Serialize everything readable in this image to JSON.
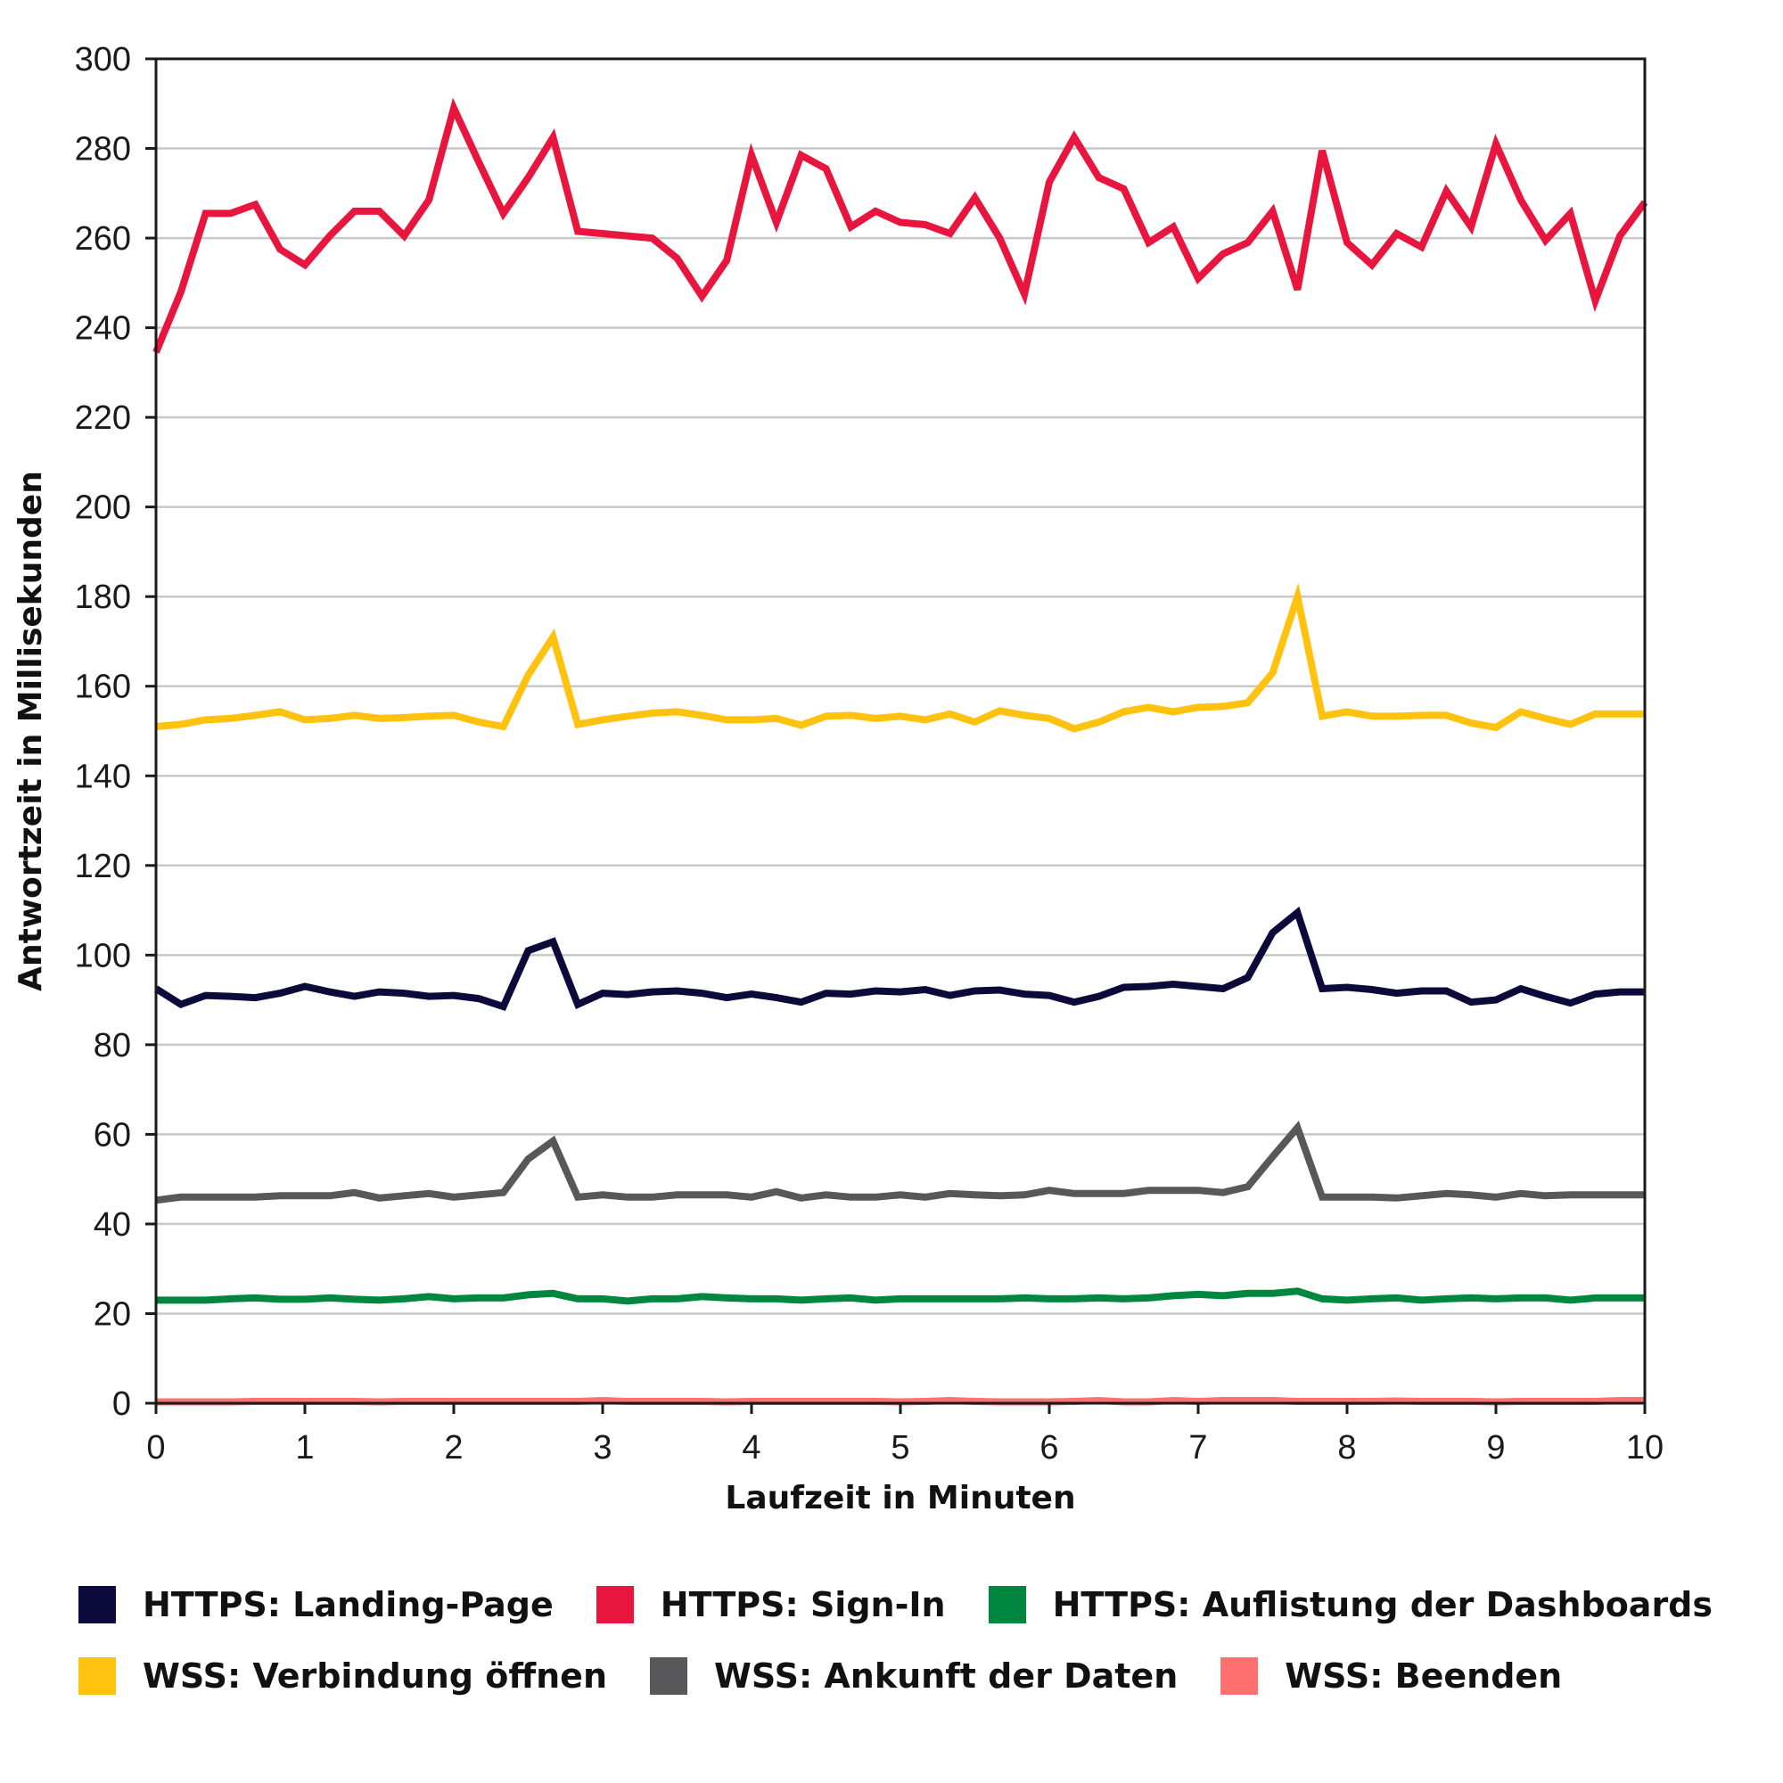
{
  "chart_data": {
    "type": "line",
    "xlabel": "Laufzeit in Minuten",
    "ylabel": "Antwortzeit in Millisekunden",
    "xlim": [
      0,
      10
    ],
    "ylim": [
      0,
      300
    ],
    "xticks": [
      "0",
      "1",
      "2",
      "3",
      "4",
      "5",
      "6",
      "7",
      "8",
      "9",
      "10"
    ],
    "yticks": [
      "0",
      "20",
      "40",
      "60",
      "80",
      "100",
      "120",
      "140",
      "160",
      "180",
      "200",
      "220",
      "240",
      "260",
      "280",
      "300"
    ],
    "grid": "horizontal",
    "legend_position": "bottom",
    "x": [
      0,
      0.167,
      0.333,
      0.5,
      0.667,
      0.833,
      1,
      1.167,
      1.333,
      1.5,
      1.667,
      1.833,
      2,
      2.167,
      2.333,
      2.5,
      2.667,
      2.833,
      3,
      3.167,
      3.333,
      3.5,
      3.667,
      3.833,
      4,
      4.167,
      4.333,
      4.5,
      4.667,
      4.833,
      5,
      5.167,
      5.333,
      5.5,
      5.667,
      5.833,
      6,
      6.167,
      6.333,
      6.5,
      6.667,
      6.833,
      7,
      7.167,
      7.333,
      7.5,
      7.667,
      7.833,
      8,
      8.167,
      8.333,
      8.5,
      8.667,
      8.833,
      9,
      9.167,
      9.333,
      9.5,
      9.667,
      9.833,
      10
    ],
    "series": [
      {
        "name": "HTTPS: Landing-Page",
        "color": "#0c0a3a",
        "values": [
          92.5,
          89,
          91,
          90.8,
          90.5,
          91.5,
          93,
          91.8,
          90.8,
          91.8,
          91.5,
          90.8,
          91,
          90.3,
          88.5,
          101,
          103,
          89,
          91.5,
          91.2,
          91.8,
          92,
          91.5,
          90.5,
          91.3,
          90.5,
          89.5,
          91.5,
          91.3,
          92,
          91.8,
          92.3,
          91,
          92,
          92.2,
          91.3,
          91,
          89.5,
          90.8,
          92.8,
          93,
          93.5,
          93,
          92.5,
          95,
          105,
          109.5,
          92.5,
          92.8,
          92.3,
          91.5,
          92,
          92,
          89.5,
          90,
          92.5,
          90.8,
          89.3,
          91.3,
          91.8,
          91.8
        ]
      },
      {
        "name": "HTTPS: Sign-In",
        "color": "#e8153f",
        "values": [
          234.5,
          248,
          265.5,
          265.5,
          267.5,
          257.5,
          254,
          260.5,
          266,
          266,
          260.5,
          268.5,
          289,
          277,
          265.5,
          273.5,
          282.5,
          261.5,
          261,
          260.5,
          260,
          255.5,
          247,
          255,
          278.5,
          263.5,
          278.5,
          275.5,
          262.5,
          266,
          263.5,
          263,
          261,
          269,
          260,
          247.5,
          272.5,
          282.5,
          273.5,
          271,
          259,
          262.5,
          251,
          256.5,
          259,
          266,
          248.5,
          279.5,
          259,
          254,
          261,
          258,
          270.5,
          262.5,
          281,
          268.5,
          259.5,
          265.5,
          246,
          260.5,
          268
        ]
      },
      {
        "name": "HTTPS: Auflistung der Dashboards",
        "color": "#00873f",
        "values": [
          23,
          23,
          23,
          23.3,
          23.5,
          23.2,
          23.2,
          23.5,
          23.2,
          23,
          23.3,
          23.8,
          23.3,
          23.5,
          23.5,
          24.2,
          24.5,
          23.3,
          23.3,
          22.8,
          23.3,
          23.3,
          23.8,
          23.5,
          23.3,
          23.3,
          23,
          23.3,
          23.5,
          23,
          23.3,
          23.3,
          23.3,
          23.3,
          23.3,
          23.5,
          23.3,
          23.3,
          23.5,
          23.3,
          23.5,
          24,
          24.3,
          24,
          24.5,
          24.5,
          25,
          23.3,
          23,
          23.3,
          23.5,
          23,
          23.3,
          23.5,
          23.3,
          23.5,
          23.5,
          23,
          23.5,
          23.5,
          23.5
        ]
      },
      {
        "name": "WSS: Verbindung öffnen",
        "color": "#ffc20e",
        "values": [
          151,
          151.5,
          152.5,
          152.8,
          153.5,
          154.3,
          152.5,
          152.8,
          153.5,
          152.8,
          153,
          153.3,
          153.5,
          152,
          151,
          162.5,
          171,
          151.5,
          152.5,
          153.3,
          154,
          154.3,
          153.5,
          152.5,
          152.5,
          152.8,
          151.3,
          153.3,
          153.5,
          152.8,
          153.3,
          152.5,
          153.8,
          152,
          154.5,
          153.5,
          152.8,
          150.5,
          152,
          154.3,
          155.3,
          154.3,
          155.3,
          155.5,
          156.3,
          163,
          180,
          153.3,
          154.3,
          153.3,
          153.3,
          153.5,
          153.5,
          151.8,
          150.8,
          154.3,
          152.8,
          151.5,
          153.8,
          153.8,
          153.8
        ]
      },
      {
        "name": "WSS: Ankunft der Daten",
        "color": "#58585a",
        "values": [
          45.3,
          46,
          46,
          46,
          46,
          46.3,
          46.3,
          46.3,
          47,
          45.8,
          46.3,
          46.8,
          46,
          46.5,
          47,
          54.5,
          58.5,
          46,
          46.5,
          46,
          46,
          46.5,
          46.5,
          46.5,
          46,
          47.2,
          45.8,
          46.5,
          46,
          46,
          46.5,
          46,
          46.8,
          46.5,
          46.3,
          46.5,
          47.5,
          46.8,
          46.8,
          46.8,
          47.5,
          47.5,
          47.5,
          47,
          48.3,
          55,
          61.5,
          46,
          46,
          46,
          45.8,
          46.3,
          46.8,
          46.5,
          46,
          46.8,
          46.3,
          46.5,
          46.5,
          46.5,
          46.5
        ]
      },
      {
        "name": "WSS: Beenden",
        "color": "#ff7070",
        "values": [
          0.3,
          0.3,
          0.3,
          0.3,
          0.4,
          0.4,
          0.4,
          0.4,
          0.4,
          0.3,
          0.4,
          0.4,
          0.4,
          0.4,
          0.4,
          0.4,
          0.4,
          0.4,
          0.6,
          0.4,
          0.4,
          0.4,
          0.4,
          0.3,
          0.4,
          0.4,
          0.4,
          0.4,
          0.4,
          0.4,
          0.3,
          0.4,
          0.6,
          0.4,
          0.3,
          0.3,
          0.3,
          0.4,
          0.6,
          0.3,
          0.3,
          0.6,
          0.4,
          0.6,
          0.6,
          0.6,
          0.4,
          0.4,
          0.4,
          0.4,
          0.5,
          0.4,
          0.4,
          0.4,
          0.3,
          0.4,
          0.4,
          0.4,
          0.4,
          0.6,
          0.6
        ]
      }
    ]
  }
}
